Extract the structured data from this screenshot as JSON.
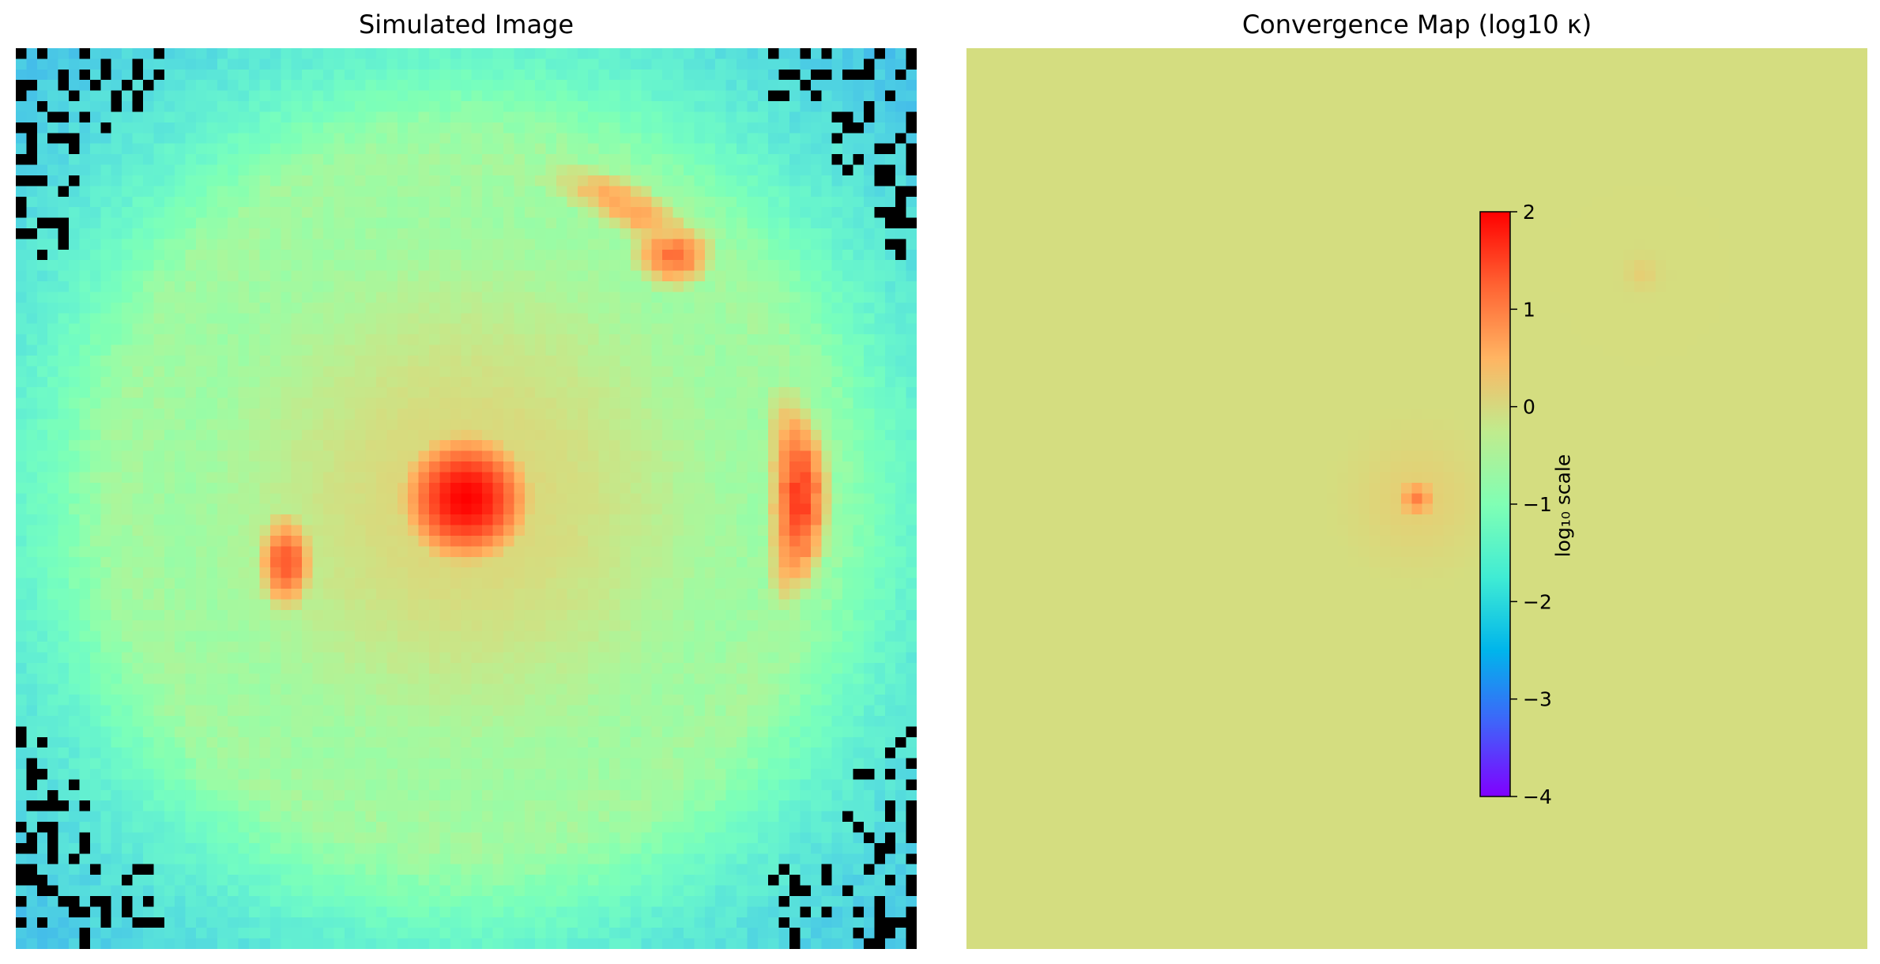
{
  "chart_data": [
    {
      "type": "heatmap",
      "title": "Simulated Image",
      "colormap": "rainbow",
      "masked_color": "#000000",
      "features": [
        {
          "label": "lens galaxy (bright core)",
          "x": 0.5,
          "y": 0.5,
          "intensity": 1.0
        },
        {
          "label": "lensed arc (right)",
          "x": 0.86,
          "y": 0.5,
          "intensity": 0.9
        },
        {
          "label": "lensed arc knot (upper right)",
          "x": 0.73,
          "y": 0.23,
          "intensity": 0.82
        },
        {
          "label": "counter-image (left)",
          "x": 0.3,
          "y": 0.57,
          "intensity": 0.86
        },
        {
          "label": "Einstein ring",
          "radius": 0.4,
          "intensity": 0.6
        }
      ],
      "grid": false,
      "axes_visible": false
    },
    {
      "type": "heatmap",
      "title": "Convergence Map (log10 κ)",
      "colormap": "rainbow",
      "features": [
        {
          "label": "main lens peak",
          "x": 0.5,
          "y": 0.5,
          "log10_kappa": 1.0
        },
        {
          "label": "subhalo",
          "x": 0.75,
          "y": 0.25,
          "log10_kappa": 0.2
        },
        {
          "label": "background",
          "log10_kappa": -0.3
        }
      ],
      "colorbar": {
        "label": "log₁₀ scale",
        "min": -4,
        "max": 2,
        "ticks": [
          "2",
          "1",
          "0",
          "−1",
          "−2",
          "−3",
          "−4"
        ],
        "tick_values": [
          2,
          1,
          0,
          -1,
          -2,
          -3,
          -4
        ]
      },
      "grid": false,
      "axes_visible": false
    }
  ]
}
